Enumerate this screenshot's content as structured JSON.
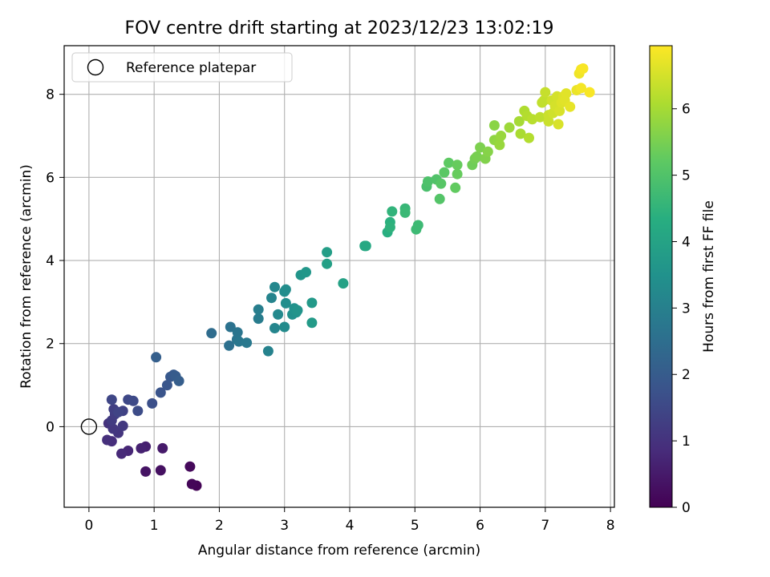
{
  "chart_data": {
    "type": "scatter",
    "title": "FOV centre drift starting at 2023/12/23 13:02:19",
    "xlabel": "Angular distance from reference (arcmin)",
    "ylabel": "Rotation from reference (arcmin)",
    "xlim": [
      -0.38,
      8.06
    ],
    "ylim": [
      -1.94,
      9.17
    ],
    "xticks": [
      "0",
      "1",
      "2",
      "3",
      "4",
      "5",
      "6",
      "7",
      "8"
    ],
    "yticks": [
      "0",
      "2",
      "4",
      "6",
      "8"
    ],
    "grid": true,
    "legend": {
      "placement": "top-left",
      "entries": [
        "Reference platepar"
      ]
    },
    "reference_point": {
      "x": 0,
      "y": 0,
      "label": "Reference platepar"
    },
    "colorbar": {
      "label": "Hours from first FF file",
      "min": 0,
      "max": 6.95,
      "ticks": [
        "0",
        "1",
        "2",
        "3",
        "4",
        "5",
        "6"
      ],
      "colormap": "viridis"
    },
    "series": [
      {
        "points": [
          [
            1.65,
            -1.42,
            0.05
          ],
          [
            1.58,
            -1.38,
            0.1
          ],
          [
            1.55,
            -0.96,
            0.15
          ],
          [
            1.1,
            -1.05,
            0.3
          ],
          [
            0.87,
            -1.08,
            0.35
          ],
          [
            1.13,
            -0.52,
            0.5
          ],
          [
            0.87,
            -0.48,
            0.6
          ],
          [
            0.8,
            -0.52,
            0.65
          ],
          [
            0.6,
            -0.58,
            0.75
          ],
          [
            0.5,
            -0.65,
            0.8
          ],
          [
            0.35,
            -0.35,
            0.9
          ],
          [
            0.28,
            -0.32,
            0.95
          ],
          [
            0.3,
            0.08,
            1.0
          ],
          [
            0.45,
            -0.15,
            1.05
          ],
          [
            0.37,
            -0.05,
            1.1
          ],
          [
            0.52,
            0.02,
            1.15
          ],
          [
            0.35,
            0.15,
            1.2
          ],
          [
            0.4,
            0.3,
            1.25
          ],
          [
            0.38,
            0.42,
            1.3
          ],
          [
            0.52,
            0.38,
            1.35
          ],
          [
            0.45,
            0.35,
            1.4
          ],
          [
            0.35,
            0.65,
            1.45
          ],
          [
            0.6,
            0.65,
            1.5
          ],
          [
            0.68,
            0.62,
            1.55
          ],
          [
            0.75,
            0.38,
            1.6
          ],
          [
            0.97,
            0.56,
            1.7
          ],
          [
            1.1,
            0.82,
            1.8
          ],
          [
            1.2,
            1.0,
            1.85
          ],
          [
            1.25,
            1.2,
            1.9
          ],
          [
            1.3,
            1.25,
            1.95
          ],
          [
            1.33,
            1.22,
            2.0
          ],
          [
            1.38,
            1.1,
            2.05
          ],
          [
            1.03,
            1.67,
            2.1
          ],
          [
            1.88,
            2.25,
            2.45
          ],
          [
            2.15,
            1.95,
            2.55
          ],
          [
            2.17,
            2.4,
            2.6
          ],
          [
            2.27,
            2.1,
            2.65
          ],
          [
            2.28,
            2.27,
            2.7
          ],
          [
            2.3,
            2.05,
            2.75
          ],
          [
            2.42,
            2.02,
            2.8
          ],
          [
            2.6,
            2.6,
            2.9
          ],
          [
            2.6,
            2.82,
            2.95
          ],
          [
            2.75,
            1.82,
            3.05
          ],
          [
            2.8,
            3.1,
            3.1
          ],
          [
            2.85,
            2.37,
            3.15
          ],
          [
            2.85,
            3.36,
            3.2
          ],
          [
            2.9,
            2.7,
            3.25
          ],
          [
            3.0,
            2.4,
            3.3
          ],
          [
            3.0,
            3.25,
            3.35
          ],
          [
            3.02,
            3.3,
            3.35
          ],
          [
            3.02,
            2.97,
            3.4
          ],
          [
            3.12,
            2.7,
            3.45
          ],
          [
            3.15,
            2.85,
            3.5
          ],
          [
            3.18,
            2.75,
            3.5
          ],
          [
            3.2,
            2.8,
            3.55
          ],
          [
            3.25,
            3.65,
            3.6
          ],
          [
            3.33,
            3.72,
            3.65
          ],
          [
            3.42,
            2.98,
            3.7
          ],
          [
            3.42,
            2.5,
            3.75
          ],
          [
            3.65,
            4.2,
            3.85
          ],
          [
            3.65,
            3.92,
            3.9
          ],
          [
            3.9,
            3.45,
            3.95
          ],
          [
            4.23,
            4.35,
            4.1
          ],
          [
            4.25,
            4.35,
            4.15
          ],
          [
            4.58,
            4.68,
            4.35
          ],
          [
            4.62,
            4.92,
            4.4
          ],
          [
            4.62,
            4.8,
            4.45
          ],
          [
            4.65,
            5.18,
            4.5
          ],
          [
            4.85,
            5.25,
            4.6
          ],
          [
            4.85,
            5.15,
            4.65
          ],
          [
            5.02,
            4.75,
            4.7
          ],
          [
            5.05,
            4.85,
            4.7
          ],
          [
            5.18,
            5.78,
            4.9
          ],
          [
            5.2,
            5.9,
            4.95
          ],
          [
            5.33,
            5.95,
            5.0
          ],
          [
            5.38,
            5.48,
            5.05
          ],
          [
            5.4,
            5.85,
            5.1
          ],
          [
            5.45,
            6.12,
            5.15
          ],
          [
            5.52,
            6.35,
            5.2
          ],
          [
            5.62,
            5.75,
            5.25
          ],
          [
            5.65,
            6.08,
            5.3
          ],
          [
            5.65,
            6.3,
            5.3
          ],
          [
            5.88,
            6.3,
            5.4
          ],
          [
            5.92,
            6.45,
            5.45
          ],
          [
            5.95,
            6.5,
            5.5
          ],
          [
            6.0,
            6.72,
            5.55
          ],
          [
            6.08,
            6.45,
            5.6
          ],
          [
            6.12,
            6.62,
            5.65
          ],
          [
            6.22,
            7.25,
            5.7
          ],
          [
            6.22,
            6.9,
            5.75
          ],
          [
            6.28,
            6.88,
            5.8
          ],
          [
            6.3,
            6.78,
            5.85
          ],
          [
            6.32,
            7.0,
            5.85
          ],
          [
            6.45,
            7.2,
            5.9
          ],
          [
            6.6,
            7.35,
            6.0
          ],
          [
            6.62,
            7.05,
            6.05
          ],
          [
            6.68,
            7.6,
            6.1
          ],
          [
            6.72,
            7.48,
            6.15
          ],
          [
            6.75,
            6.95,
            6.15
          ],
          [
            6.8,
            7.4,
            6.2
          ],
          [
            6.92,
            7.45,
            6.25
          ],
          [
            6.95,
            7.8,
            6.3
          ],
          [
            6.98,
            7.85,
            6.3
          ],
          [
            7.0,
            8.05,
            6.35
          ],
          [
            7.05,
            7.5,
            6.4
          ],
          [
            7.05,
            7.35,
            6.4
          ],
          [
            7.1,
            7.85,
            6.45
          ],
          [
            7.12,
            7.55,
            6.45
          ],
          [
            7.15,
            7.72,
            6.5
          ],
          [
            7.18,
            7.95,
            6.5
          ],
          [
            7.2,
            7.28,
            6.55
          ],
          [
            7.22,
            7.6,
            6.55
          ],
          [
            7.25,
            7.8,
            6.6
          ],
          [
            7.28,
            7.95,
            6.6
          ],
          [
            7.3,
            7.85,
            6.65
          ],
          [
            7.32,
            8.02,
            6.65
          ],
          [
            7.38,
            7.7,
            6.7
          ],
          [
            7.48,
            8.1,
            6.75
          ],
          [
            7.52,
            8.5,
            6.8
          ],
          [
            7.55,
            8.6,
            6.85
          ],
          [
            7.55,
            8.15,
            6.85
          ],
          [
            7.58,
            8.62,
            6.9
          ],
          [
            7.68,
            8.05,
            6.9
          ]
        ]
      }
    ]
  }
}
